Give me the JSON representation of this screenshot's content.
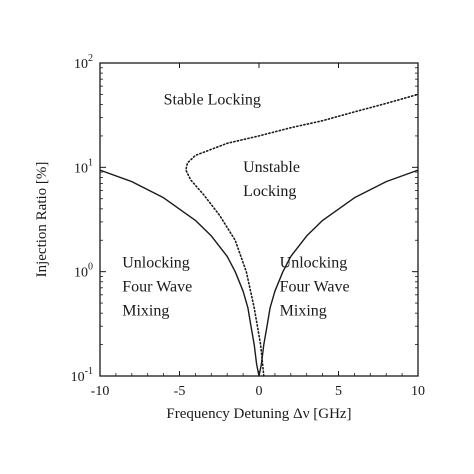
{
  "chart_data": {
    "type": "line",
    "xlabel": "Frequency Detuning  Δν [GHz]",
    "ylabel": "Injection Ratio [%]",
    "xlim": [
      -10,
      10
    ],
    "ylim": [
      0.1,
      100
    ],
    "yscale": "log",
    "grid": false,
    "x_ticks": [
      -10,
      -5,
      0,
      5,
      10
    ],
    "y_ticks": [
      {
        "value": 0.1,
        "base": "10",
        "exp": "-1"
      },
      {
        "value": 1,
        "base": "10",
        "exp": "0"
      },
      {
        "value": 10,
        "base": "10",
        "exp": "1"
      },
      {
        "value": 100,
        "base": "10",
        "exp": "2"
      }
    ],
    "series": [
      {
        "style": "solid",
        "color": "#1a1a1a",
        "points": [
          [
            -10,
            9.4
          ],
          [
            -8,
            7.3
          ],
          [
            -6,
            5.1
          ],
          [
            -4,
            3.1
          ],
          [
            -3,
            2.2
          ],
          [
            -2,
            1.4
          ],
          [
            -1.5,
            1.0
          ],
          [
            -1,
            0.65
          ],
          [
            -0.7,
            0.45
          ],
          [
            -0.5,
            0.3
          ],
          [
            -0.3,
            0.2
          ],
          [
            -0.15,
            0.13
          ],
          [
            0,
            0.1
          ],
          [
            0.15,
            0.13
          ],
          [
            0.3,
            0.2
          ],
          [
            0.5,
            0.3
          ],
          [
            0.7,
            0.45
          ],
          [
            1,
            0.65
          ],
          [
            1.5,
            1.0
          ],
          [
            2,
            1.4
          ],
          [
            3,
            2.2
          ],
          [
            4,
            3.1
          ],
          [
            6,
            5.1
          ],
          [
            8,
            7.3
          ],
          [
            10,
            9.4
          ]
        ]
      },
      {
        "style": "dotted",
        "color": "#1a1a1a",
        "points": [
          [
            0.3,
            0.1
          ],
          [
            0.1,
            0.2
          ],
          [
            -0.3,
            0.45
          ],
          [
            -0.8,
            1.0
          ],
          [
            -1.5,
            2.0
          ],
          [
            -2.5,
            3.5
          ],
          [
            -3.5,
            5.5
          ],
          [
            -4.3,
            7.6
          ],
          [
            -4.6,
            9.4
          ],
          [
            -4.5,
            11.0
          ],
          [
            -4.0,
            13.0
          ],
          [
            -2,
            17
          ],
          [
            0,
            20
          ],
          [
            2,
            24
          ],
          [
            4,
            28
          ],
          [
            6,
            34
          ],
          [
            8,
            41
          ],
          [
            10,
            50
          ]
        ]
      }
    ],
    "annotations": [
      {
        "lines": [
          "Stable Locking"
        ],
        "x": -6.0,
        "y": 40
      },
      {
        "lines": [
          "Unstable",
          "Locking"
        ],
        "x": -1.0,
        "y": 9.0
      },
      {
        "lines": [
          "Unlocking",
          "Four Wave",
          "Mixing"
        ],
        "x": -8.6,
        "y": 1.1
      },
      {
        "lines": [
          "Unlocking",
          "Four Wave",
          "Mixing"
        ],
        "x": 1.3,
        "y": 1.1
      }
    ]
  }
}
